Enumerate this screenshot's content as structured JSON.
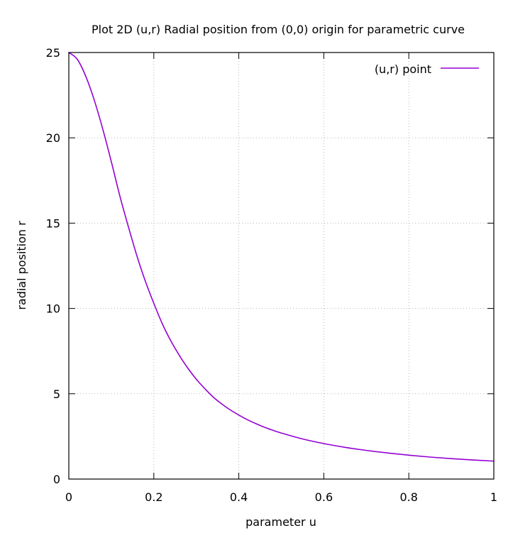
{
  "chart_data": {
    "type": "line",
    "title": "Plot 2D (u,r) Radial position from (0,0) origin for parametric curve",
    "xlabel": "parameter u",
    "ylabel": "radial position r",
    "xlim": [
      0,
      1
    ],
    "ylim": [
      0,
      25
    ],
    "x_ticks": [
      0,
      0.2,
      0.4,
      0.6,
      0.8,
      1
    ],
    "x_tick_labels": [
      "0",
      "0.2",
      "0.4",
      "0.6",
      "0.8",
      "1"
    ],
    "y_ticks": [
      0,
      5,
      10,
      15,
      20,
      25
    ],
    "y_tick_labels": [
      "0",
      "5",
      "10",
      "15",
      "20",
      "25"
    ],
    "grid": true,
    "legend_position": "top-right",
    "series": [
      {
        "name": "(u,r) point",
        "color": "#9400d3",
        "x": [
          0,
          0.02,
          0.04,
          0.06,
          0.08,
          0.1,
          0.12,
          0.14,
          0.16,
          0.18,
          0.2,
          0.22,
          0.24,
          0.26,
          0.28,
          0.3,
          0.32,
          0.34,
          0.36,
          0.38,
          0.4,
          0.42,
          0.44,
          0.46,
          0.48,
          0.5,
          0.55,
          0.6,
          0.65,
          0.7,
          0.75,
          0.8,
          0.85,
          0.9,
          0.95,
          1.0
        ],
        "y": [
          25,
          24.6,
          23.6,
          22.2,
          20.5,
          18.6,
          16.6,
          14.8,
          13.1,
          11.6,
          10.3,
          9.1,
          8.1,
          7.25,
          6.5,
          5.85,
          5.3,
          4.8,
          4.4,
          4.05,
          3.75,
          3.48,
          3.25,
          3.04,
          2.86,
          2.7,
          2.35,
          2.08,
          1.86,
          1.68,
          1.53,
          1.4,
          1.29,
          1.2,
          1.12,
          1.05
        ]
      }
    ]
  }
}
